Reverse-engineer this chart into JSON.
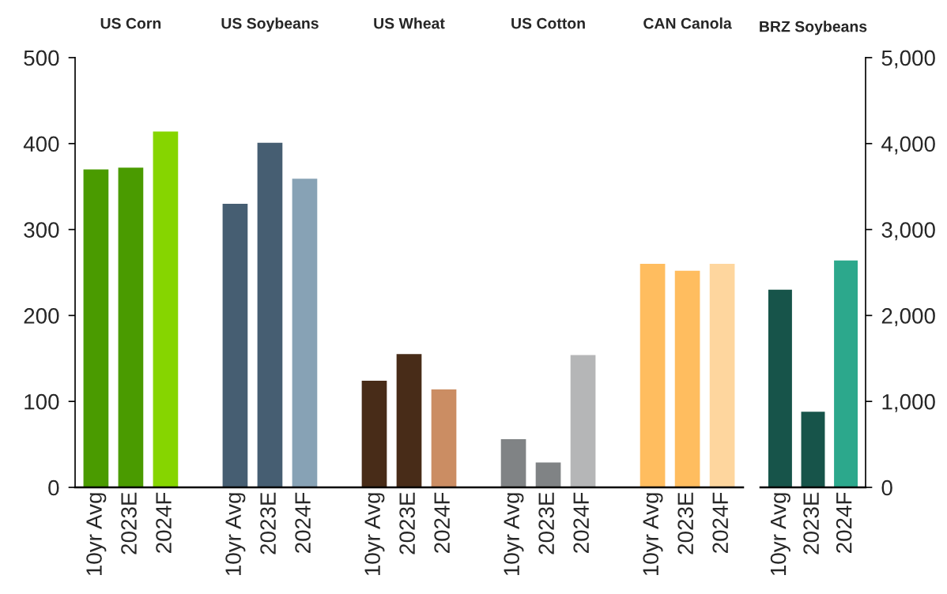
{
  "chart_data": [
    {
      "type": "bar",
      "categories": [
        "10yr Avg",
        "2023E",
        "2024F",
        null,
        "10yr Avg",
        "2023E",
        "2024F",
        null,
        "10yr Avg",
        "2023E",
        "2024F",
        null,
        "10yr Avg",
        "2023E",
        "2024F",
        null,
        "10yr Avg",
        "2023E",
        "2024F"
      ],
      "series": [
        {
          "values": [
            370,
            372,
            414,
            null,
            330,
            401,
            359,
            null,
            124,
            155,
            114,
            null,
            56,
            29,
            154,
            null,
            260,
            252,
            260
          ],
          "colors": [
            "#4a9b00",
            "#4a9b00",
            "#86d500",
            "#ffffff",
            "#465e72",
            "#465e72",
            "#87a2b5",
            "#ffffff",
            "#482c18",
            "#482c18",
            "#cb8d63",
            "#ffffff",
            "#808385",
            "#808385",
            "#b5b6b7",
            "#ffffff",
            "#ffbd5f",
            "#ffbd5f",
            "#fed69e"
          ]
        }
      ],
      "annotations": [
        "US Corn",
        "US Soybeans",
        "US Wheat",
        "US Cotton",
        "CAN Canola"
      ],
      "ylim": [
        0,
        500
      ],
      "yticks": [
        0,
        100,
        200,
        300,
        400,
        500
      ]
    },
    {
      "type": "bar",
      "title": "BRZ Soybeans",
      "categories": [
        "10yr Avg",
        "2023E",
        "2024F"
      ],
      "series": [
        {
          "axis": "y2",
          "values": [
            2300,
            880,
            2640
          ],
          "colors": [
            "#17544a",
            "#17544a",
            "#2ca88c"
          ]
        }
      ],
      "y2lim": [
        0,
        5000
      ],
      "y2ticks": [
        0,
        {
          "value": 1000,
          "label": "1,000"
        },
        {
          "value": 2000,
          "label": "2,000"
        },
        {
          "value": 3000,
          "label": "3,000"
        },
        {
          "value": 4000,
          "label": "4,000"
        },
        {
          "value": 5000,
          "label": "5,000"
        }
      ]
    }
  ]
}
